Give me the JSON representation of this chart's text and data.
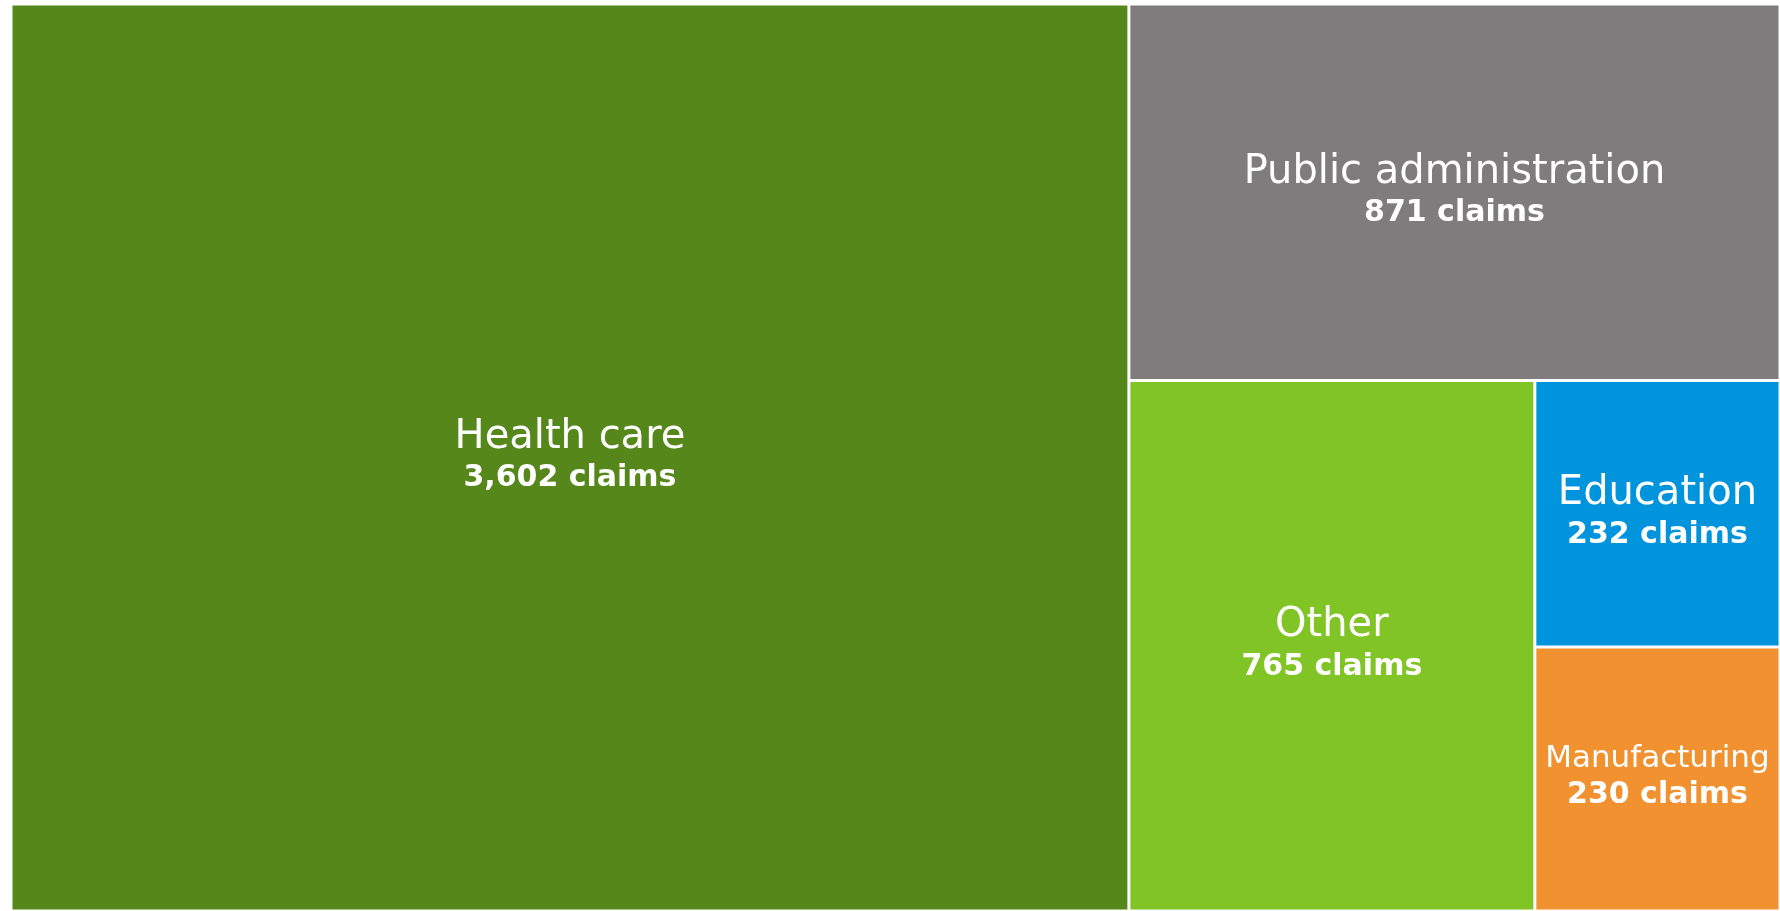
{
  "chart_data": {
    "type": "other",
    "categories": [
      "Health care",
      "Public administration",
      "Other",
      "Education",
      "Manufacturing"
    ],
    "values": [
      3602,
      871,
      765,
      232,
      230
    ],
    "colors": [
      "#56871a",
      "#7f7c7d",
      "#80c425",
      "#0094dc",
      "#f29130"
    ],
    "value_labels": [
      "3,602 claims",
      "871 claims",
      "765 claims",
      "232 claims",
      "230 claims"
    ]
  }
}
